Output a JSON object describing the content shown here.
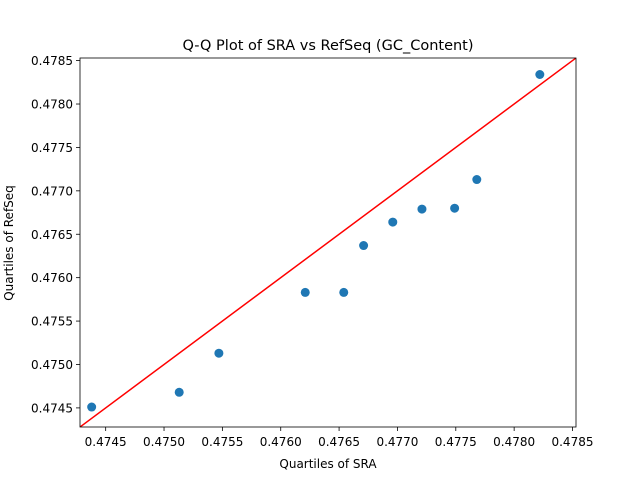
{
  "chart_data": {
    "type": "scatter",
    "title": "Q-Q Plot of SRA vs RefSeq (GC_Content)",
    "xlabel": "Quartiles of SRA",
    "ylabel": "Quartiles of RefSeq",
    "xlim": [
      0.47428,
      0.47853
    ],
    "ylim": [
      0.47428,
      0.47853
    ],
    "x_ticks": [
      "0.4745",
      "0.4750",
      "0.4755",
      "0.4760",
      "0.4765",
      "0.4770",
      "0.4775",
      "0.4780",
      "0.4785"
    ],
    "x_tick_values": [
      0.4745,
      0.475,
      0.4755,
      0.476,
      0.4765,
      0.477,
      0.4775,
      0.478,
      0.4785
    ],
    "y_ticks": [
      "0.4745",
      "0.4750",
      "0.4755",
      "0.4760",
      "0.4765",
      "0.4770",
      "0.4775",
      "0.4780",
      "0.4785"
    ],
    "y_tick_values": [
      0.4745,
      0.475,
      0.4755,
      0.476,
      0.4765,
      0.477,
      0.4775,
      0.478,
      0.4785
    ],
    "points": [
      {
        "x": 0.47438,
        "y": 0.47451
      },
      {
        "x": 0.47513,
        "y": 0.47468
      },
      {
        "x": 0.47547,
        "y": 0.47513
      },
      {
        "x": 0.47621,
        "y": 0.47583
      },
      {
        "x": 0.47654,
        "y": 0.47583
      },
      {
        "x": 0.47671,
        "y": 0.47637
      },
      {
        "x": 0.47696,
        "y": 0.47664
      },
      {
        "x": 0.47721,
        "y": 0.47679
      },
      {
        "x": 0.47749,
        "y": 0.4768
      },
      {
        "x": 0.47768,
        "y": 0.47713
      },
      {
        "x": 0.47822,
        "y": 0.47834
      }
    ],
    "reference_line": {
      "from": [
        0.47428,
        0.47428
      ],
      "to": [
        0.47853,
        0.47853
      ],
      "color": "#ff0000"
    },
    "marker_color": "#1f77b4",
    "grid": false
  }
}
